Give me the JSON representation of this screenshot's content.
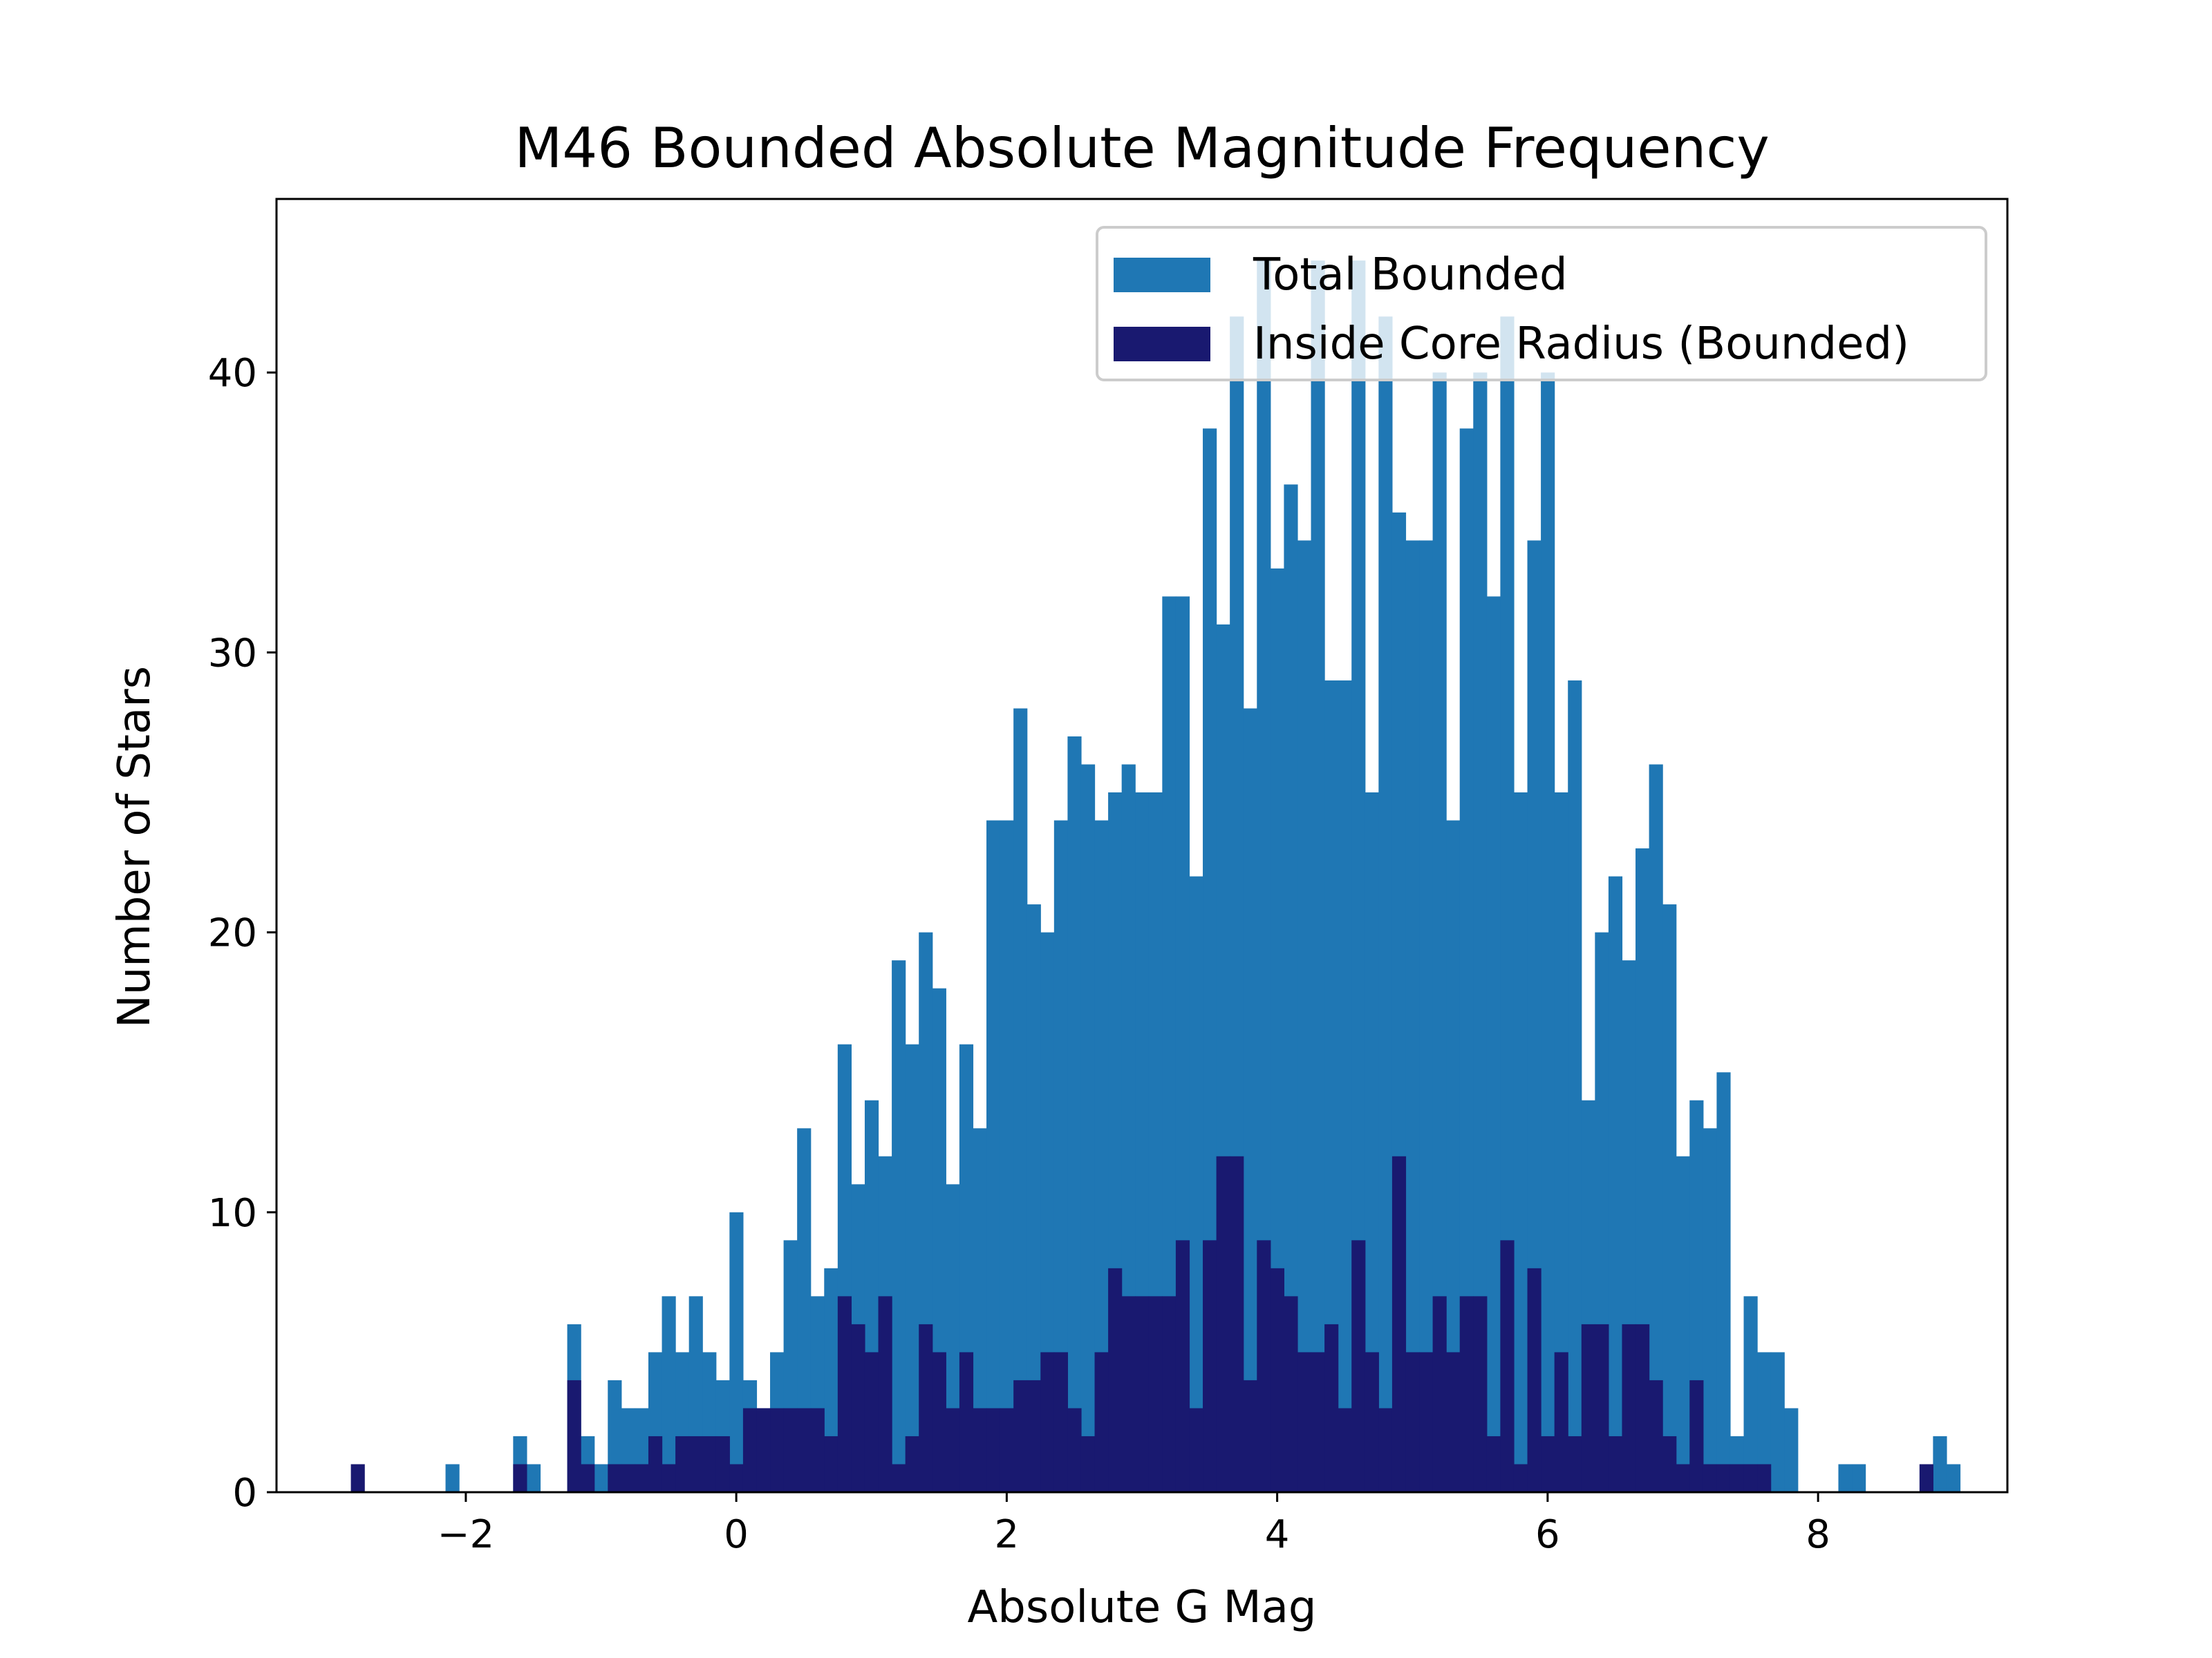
{
  "chart_data": {
    "type": "histogram",
    "title": "M46 Bounded Absolute Magnitude Frequency",
    "xlabel": "Absolute G Mag",
    "ylabel": "Number of Stars",
    "xlim": [
      -3.4,
      9.4
    ],
    "ylim": [
      0,
      46.2
    ],
    "xticks": [
      -2,
      0,
      2,
      4,
      6,
      8
    ],
    "xtick_labels": [
      "−2",
      "0",
      "2",
      "4",
      "6",
      "8"
    ],
    "yticks": [
      0,
      10,
      20,
      30,
      40
    ],
    "ytick_labels": [
      "0",
      "10",
      "20",
      "30",
      "40"
    ],
    "bin_start": -2.85,
    "bin_width": 0.1,
    "legend_position": "upper-right",
    "grid": false,
    "series": [
      {
        "name": "Total Bounded",
        "color": "#1f77b4",
        "values": [
          0,
          0,
          0,
          0,
          0,
          0,
          0,
          1,
          0,
          0,
          0,
          0,
          2,
          1,
          0,
          0,
          6,
          2,
          1,
          4,
          3,
          3,
          5,
          7,
          5,
          7,
          5,
          4,
          10,
          4,
          3,
          5,
          9,
          13,
          7,
          8,
          16,
          11,
          14,
          12,
          19,
          16,
          20,
          18,
          11,
          16,
          13,
          24,
          24,
          28,
          21,
          20,
          24,
          27,
          26,
          24,
          25,
          26,
          25,
          25,
          32,
          32,
          22,
          38,
          31,
          42,
          28,
          44,
          33,
          36,
          34,
          44,
          29,
          29,
          44,
          25,
          42,
          35,
          34,
          34,
          40,
          24,
          38,
          40,
          32,
          42,
          25,
          34,
          40,
          25,
          29,
          14,
          20,
          22,
          19,
          23,
          26,
          21,
          12,
          14,
          13,
          15,
          2,
          7,
          5,
          5,
          3,
          0,
          0,
          0,
          1,
          1,
          0,
          0,
          0,
          0,
          0,
          2,
          1
        ]
      },
      {
        "name": "Inside Core Radius (Bounded)",
        "color": "#191970",
        "values": [
          1,
          0,
          0,
          0,
          0,
          0,
          0,
          0,
          0,
          0,
          0,
          0,
          1,
          0,
          0,
          0,
          4,
          1,
          0,
          1,
          1,
          1,
          2,
          1,
          2,
          2,
          2,
          2,
          1,
          3,
          3,
          3,
          3,
          3,
          3,
          2,
          7,
          6,
          5,
          7,
          1,
          2,
          6,
          5,
          3,
          5,
          3,
          3,
          3,
          4,
          4,
          5,
          5,
          3,
          2,
          5,
          8,
          7,
          7,
          7,
          7,
          9,
          3,
          9,
          12,
          12,
          4,
          9,
          8,
          7,
          5,
          5,
          6,
          3,
          9,
          5,
          3,
          12,
          5,
          5,
          7,
          5,
          7,
          7,
          2,
          9,
          1,
          8,
          2,
          5,
          2,
          6,
          6,
          2,
          6,
          6,
          4,
          2,
          1,
          4,
          1,
          1,
          1,
          1,
          1,
          0,
          0,
          0,
          0,
          0,
          0,
          0,
          0,
          0,
          0,
          0,
          1,
          0,
          0,
          0
        ]
      }
    ]
  }
}
